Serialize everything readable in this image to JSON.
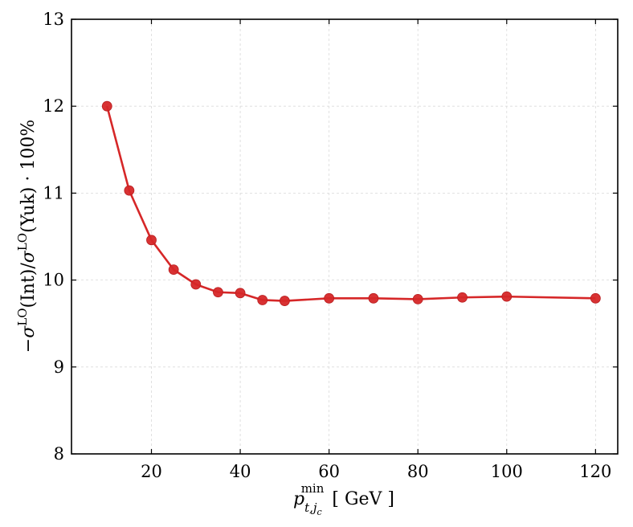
{
  "chart_data": {
    "type": "line",
    "xlabel": "p_{t,j_c}^{min} [ GeV ]",
    "xlabel_parts": {
      "main": "p",
      "sup": "min",
      "sub": "t,j",
      "subsub": "c",
      "unit": "[ GeV ]"
    },
    "ylabel": "−σ^LO(Int)/σ^LO(Yuk) · 100%",
    "ylabel_parts": {
      "minus": "−",
      "sigma": "σ",
      "lo": "LO",
      "int": "(Int)/",
      "yuk": "(Yuk) · 100%"
    },
    "xlim": [
      2,
      125
    ],
    "ylim": [
      8,
      13
    ],
    "xticks": [
      20,
      40,
      60,
      80,
      100,
      120
    ],
    "yticks": [
      8,
      9,
      10,
      11,
      12,
      13
    ],
    "grid": true,
    "series": [
      {
        "color": "#d62728",
        "x": [
          10,
          15,
          20,
          25,
          30,
          35,
          40,
          45,
          50,
          60,
          70,
          80,
          90,
          100,
          120
        ],
        "y": [
          12.0,
          11.03,
          10.46,
          10.12,
          9.95,
          9.86,
          9.85,
          9.77,
          9.76,
          9.79,
          9.79,
          9.78,
          9.8,
          9.81,
          9.79
        ]
      }
    ]
  }
}
